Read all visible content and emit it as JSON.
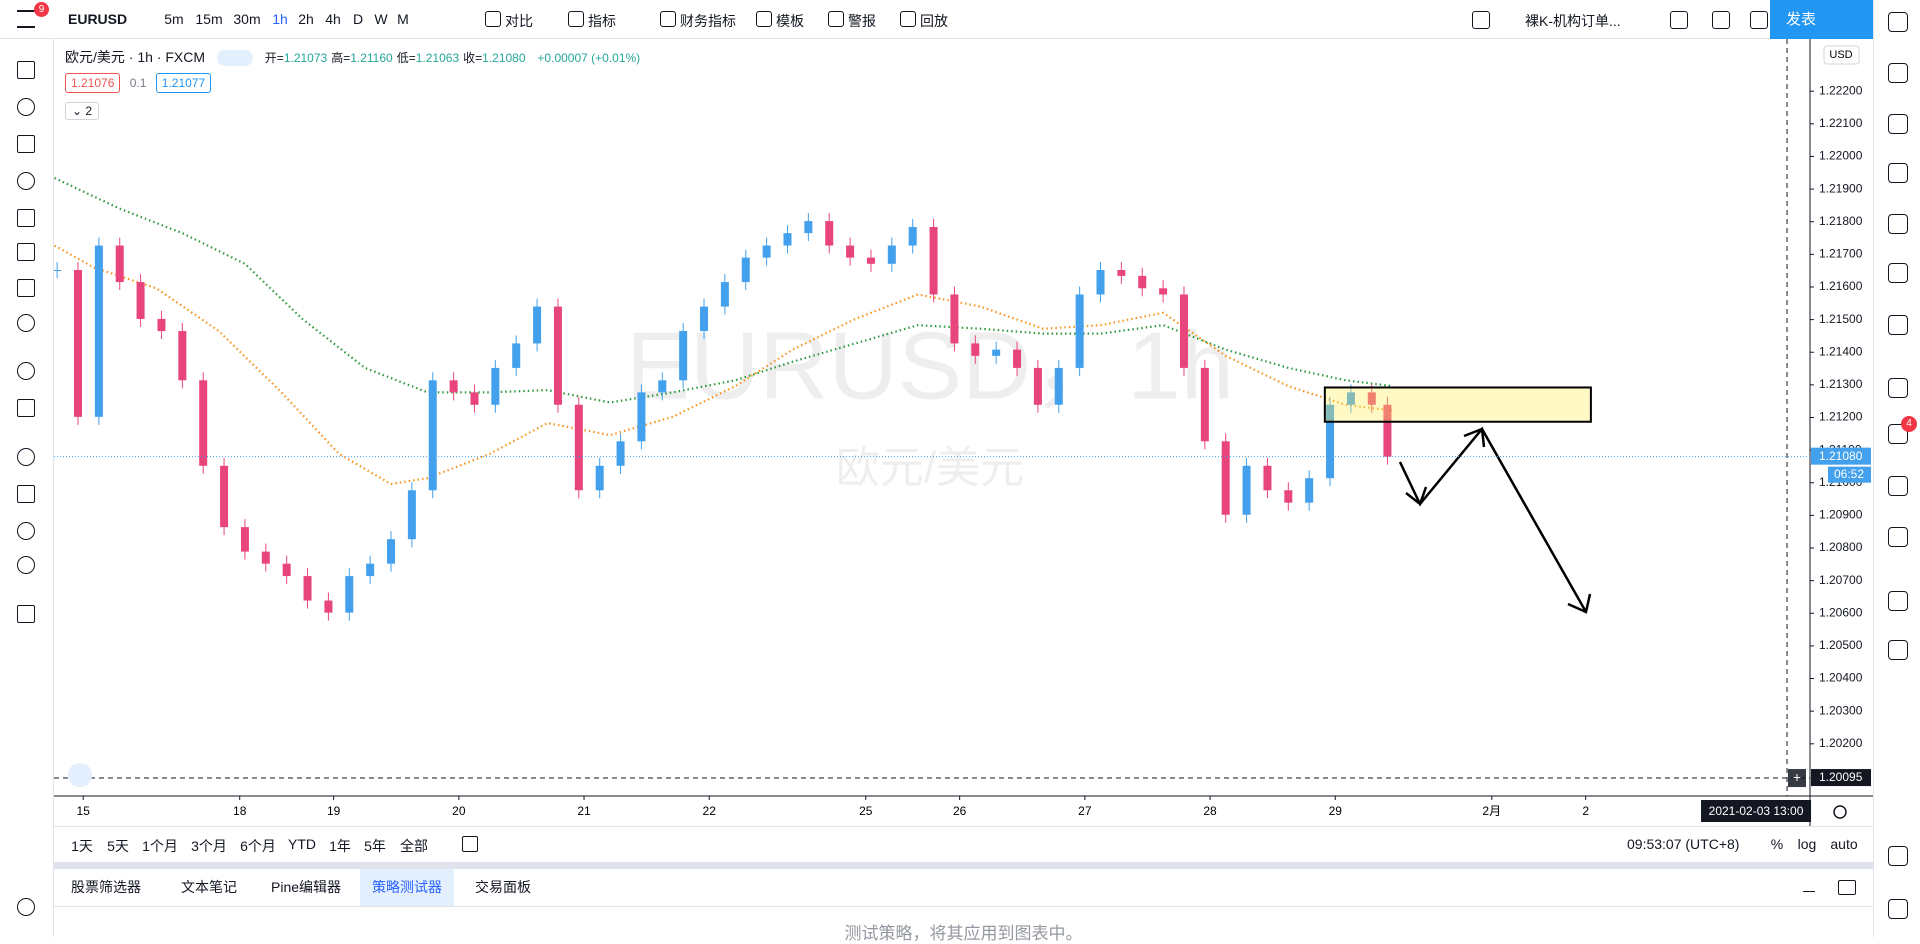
{
  "header": {
    "symbol": "EURUSD",
    "intervals": [
      "5m",
      "15m",
      "30m",
      "1h",
      "2h",
      "4h",
      "D",
      "W",
      "M"
    ],
    "active_interval": "1h",
    "tools": [
      "对比",
      "指标",
      "财务指标",
      "模板",
      "警报",
      "回放"
    ],
    "layout_name": "裸K-机构订单...",
    "publish": "发表",
    "menu_badge": "9",
    "chat_badge": "4"
  },
  "legend": {
    "title": "欧元/美元 · 1h · FXCM",
    "ohlc": [
      {
        "key": "开=",
        "value": "1.21073"
      },
      {
        "key": "高=",
        "value": "1.21160"
      },
      {
        "key": "低=",
        "value": "1.21063"
      },
      {
        "key": "收=",
        "value": "1.21080"
      }
    ],
    "change": "+0.00007 (+0.01%)",
    "bid": "1.21076",
    "spread": "0.1",
    "ask": "1.21077",
    "indicators_count": "2"
  },
  "chart_data": {
    "type": "candlestick",
    "watermark": "EURUSD，1h",
    "watermark_sub": "欧元/美元",
    "currency": "USD",
    "xlim": [
      -5.6,
      331
    ],
    "ylim": [
      1.2004,
      1.2236
    ],
    "xticks": [
      {
        "value": 0,
        "label": "15"
      },
      {
        "value": 30,
        "label": "18"
      },
      {
        "value": 48,
        "label": "19"
      },
      {
        "value": 72,
        "label": "20"
      },
      {
        "value": 96,
        "label": "21"
      },
      {
        "value": 120,
        "label": "22"
      },
      {
        "value": 150,
        "label": "25"
      },
      {
        "value": 168,
        "label": "26"
      },
      {
        "value": 192,
        "label": "27"
      },
      {
        "value": 216,
        "label": "28"
      },
      {
        "value": 240,
        "label": "29"
      },
      {
        "value": 270,
        "label": "2月"
      },
      {
        "value": 288,
        "label": "2"
      }
    ],
    "yticks": [
      {
        "value": 1.202,
        "label": "1.20200"
      },
      {
        "value": 1.203,
        "label": "1.20300"
      },
      {
        "value": 1.204,
        "label": "1.20400"
      },
      {
        "value": 1.205,
        "label": "1.20500"
      },
      {
        "value": 1.206,
        "label": "1.20600"
      },
      {
        "value": 1.207,
        "label": "1.20700"
      },
      {
        "value": 1.208,
        "label": "1.20800"
      },
      {
        "value": 1.209,
        "label": "1.20900"
      },
      {
        "value": 1.21,
        "label": "1.21000"
      },
      {
        "value": 1.211,
        "label": "1.21100"
      },
      {
        "value": 1.212,
        "label": "1.21200"
      },
      {
        "value": 1.213,
        "label": "1.21300"
      },
      {
        "value": 1.214,
        "label": "1.21400"
      },
      {
        "value": 1.215,
        "label": "1.21500"
      },
      {
        "value": 1.216,
        "label": "1.21600"
      },
      {
        "value": 1.217,
        "label": "1.21700"
      },
      {
        "value": 1.218,
        "label": "1.21800"
      },
      {
        "value": 1.219,
        "label": "1.21900"
      },
      {
        "value": 1.22,
        "label": "1.22000"
      },
      {
        "value": 1.221,
        "label": "1.22100"
      },
      {
        "value": 1.222,
        "label": "1.22200"
      }
    ],
    "up_color": "#42a0ec",
    "down_color": "#e9457d",
    "close": {
      "x": [
        -5,
        -1,
        3,
        7,
        11,
        15,
        19,
        23,
        27,
        31,
        35,
        39,
        43,
        47,
        51,
        55,
        59,
        63,
        67,
        71,
        75,
        79,
        83,
        87,
        91,
        95,
        99,
        103,
        107,
        111,
        115,
        119,
        123,
        127,
        131,
        135,
        139,
        143,
        147,
        151,
        155,
        159,
        163,
        167,
        171,
        175,
        179,
        183,
        187,
        191,
        195,
        199,
        203,
        207,
        211,
        215,
        219,
        223,
        227,
        231,
        235,
        239,
        243,
        247,
        250
      ],
      "values": [
        1.21652,
        1.21202,
        1.21727,
        1.21615,
        1.21502,
        1.21465,
        1.21314,
        1.21052,
        1.20864,
        1.20789,
        1.20752,
        1.20714,
        1.20639,
        1.20602,
        1.20714,
        1.20752,
        1.20827,
        1.20977,
        1.21314,
        1.21277,
        1.21239,
        1.21352,
        1.21427,
        1.2154,
        1.21239,
        1.20977,
        1.21052,
        1.21127,
        1.21277,
        1.21314,
        1.21465,
        1.2154,
        1.21615,
        1.2169,
        1.21727,
        1.21765,
        1.21802,
        1.21727,
        1.2169,
        1.21671,
        1.21727,
        1.21784,
        1.21577,
        1.21427,
        1.21389,
        1.21408,
        1.21352,
        1.21239,
        1.21352,
        1.21577,
        1.21652,
        1.21634,
        1.21596,
        1.21577,
        1.21352,
        1.21127,
        1.20902,
        1.21052,
        1.20977,
        1.20939,
        1.21014,
        1.21239,
        1.21277,
        1.21239,
        1.2108
      ]
    },
    "moving_averages": [
      {
        "color": "#2e9a3c",
        "x": [
          -5.5,
          7,
          19,
          31,
          42,
          54,
          66,
          78,
          89,
          101,
          113,
          125,
          136,
          148,
          160,
          172,
          184,
          195,
          207,
          219,
          231,
          242,
          251
        ],
        "values": [
          1.21934,
          1.2184,
          1.21765,
          1.21671,
          1.21502,
          1.21352,
          1.21277,
          1.21277,
          1.21284,
          1.21246,
          1.21277,
          1.21314,
          1.21371,
          1.21427,
          1.21483,
          1.21472,
          1.21457,
          1.21457,
          1.21483,
          1.21408,
          1.21352,
          1.21314,
          1.21296
        ]
      },
      {
        "color": "#f7931e",
        "x": [
          -5.5,
          2,
          14,
          26,
          38,
          49,
          59,
          66,
          78,
          89,
          101,
          113,
          125,
          136,
          148,
          160,
          172,
          184,
          195,
          207,
          219,
          231,
          242,
          251
        ],
        "values": [
          1.21727,
          1.2166,
          1.21596,
          1.21465,
          1.21277,
          1.21089,
          1.20996,
          1.21014,
          1.21089,
          1.21183,
          1.21146,
          1.21202,
          1.21296,
          1.21408,
          1.21502,
          1.21577,
          1.2154,
          1.21472,
          1.21483,
          1.21521,
          1.21389,
          1.21296,
          1.21239,
          1.21221
        ]
      }
    ],
    "zone": {
      "x": [
        238,
        289
      ],
      "y": [
        1.21187,
        1.21292
      ]
    },
    "last_price": {
      "value": 1.2108,
      "label": "1.21080"
    },
    "countdown": "06:52",
    "crosshair": {
      "x": 326.6,
      "x_label": "2021-02-03 13:00",
      "y": {
        "value": 1.20095,
        "label": "1.20095"
      }
    }
  },
  "footer": {
    "ranges": [
      "1天",
      "5天",
      "1个月",
      "3个月",
      "6个月",
      "YTD",
      "1年",
      "5年",
      "全部"
    ],
    "clock": "09:53:07 (UTC+8)",
    "scale_modes": [
      "%",
      "log",
      "auto"
    ],
    "tabs": [
      "股票筛选器",
      "文本笔记",
      "Pine编辑器",
      "策略测试器",
      "交易面板"
    ],
    "active_tab": "策略测试器",
    "message": "测试策略，将其应用到图表中。"
  }
}
